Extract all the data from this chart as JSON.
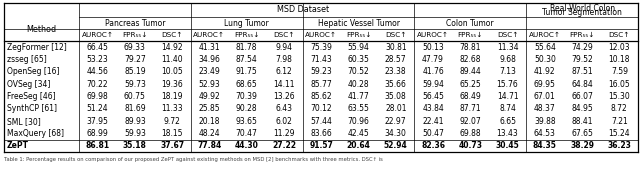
{
  "title_main": "MSD Dataset",
  "title_right1": "Real-World Colon",
  "title_right2": "Tumor Segmentation",
  "group_names": [
    "Pancreas Tumor",
    "Lung Tumor",
    "Hepatic Vessel Tumor",
    "Colon Tumor"
  ],
  "sub_cols": [
    "AUROC↑",
    "FPR₅₅↓",
    "DSC↑"
  ],
  "methods": [
    "ZegFormer [12]",
    "zsseg [65]",
    "OpenSeg [16]",
    "OVSeg [34]",
    "FreeSeg [46]",
    "SynthCP [61]",
    "SML [30]",
    "MaxQuery [68]",
    "ZePT"
  ],
  "bold_row": 8,
  "data": [
    [
      66.45,
      69.33,
      14.92,
      41.31,
      81.78,
      9.94,
      75.39,
      55.94,
      30.81,
      50.13,
      78.81,
      11.34,
      55.64,
      74.29,
      12.03
    ],
    [
      53.23,
      79.27,
      11.4,
      34.96,
      87.54,
      7.98,
      71.43,
      60.35,
      28.57,
      47.79,
      82.68,
      9.68,
      50.3,
      79.52,
      10.18
    ],
    [
      44.56,
      85.19,
      10.05,
      23.49,
      91.75,
      6.12,
      59.23,
      70.52,
      23.38,
      41.76,
      89.44,
      7.13,
      41.92,
      87.51,
      7.59
    ],
    [
      70.22,
      59.73,
      19.36,
      52.93,
      68.65,
      14.11,
      85.77,
      40.28,
      35.66,
      59.94,
      65.25,
      15.76,
      69.95,
      64.84,
      16.05
    ],
    [
      69.98,
      60.75,
      18.19,
      49.92,
      70.39,
      13.26,
      85.62,
      41.77,
      35.08,
      56.45,
      68.49,
      14.71,
      67.01,
      66.07,
      15.3
    ],
    [
      51.24,
      81.69,
      11.33,
      25.85,
      90.28,
      6.43,
      70.12,
      63.55,
      28.01,
      43.84,
      87.71,
      8.74,
      48.37,
      84.95,
      8.72
    ],
    [
      37.95,
      89.93,
      9.72,
      20.18,
      93.65,
      6.02,
      57.44,
      70.96,
      22.97,
      22.41,
      92.07,
      6.65,
      39.88,
      88.41,
      7.21
    ],
    [
      68.99,
      59.93,
      18.15,
      48.24,
      70.47,
      11.29,
      83.66,
      42.45,
      34.3,
      50.47,
      69.88,
      13.43,
      64.53,
      67.65,
      15.24
    ],
    [
      86.81,
      35.18,
      37.67,
      77.84,
      44.3,
      27.22,
      91.57,
      20.64,
      52.94,
      82.36,
      40.73,
      30.45,
      84.35,
      38.29,
      36.23
    ]
  ],
  "footer": "Table 1: Percentage results on comparison of our proposed ZePT against existing methods on MSD [2] benchmarks with three metrics. DSC↑ is",
  "bg_color": "#ffffff",
  "text_color": "#000000",
  "ref_colors": {
    "12": "#0000cc",
    "65": "#0000cc",
    "16": "#0000cc",
    "34": "#0000cc",
    "46": "#0000cc",
    "61": "#0000cc",
    "30": "#0000cc",
    "68": "#0000cc"
  }
}
